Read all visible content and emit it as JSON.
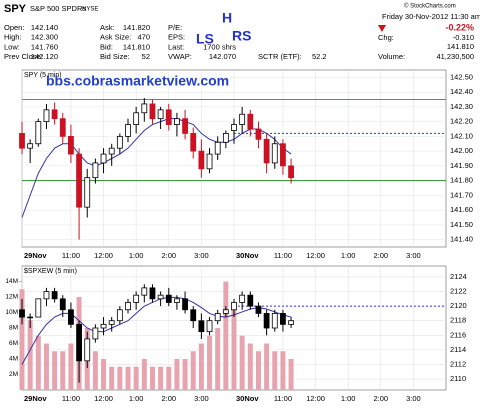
{
  "header": {
    "symbol": "SPY",
    "name": "S&P 500 SPDRs",
    "exchange": "NYSE",
    "source": "© StockCharts.com",
    "date": "Friday  30-Nov-2012  11:30 am",
    "col1": [
      [
        "Open:",
        "142.140"
      ],
      [
        "High:",
        "142.300"
      ],
      [
        "Low:",
        "141.760"
      ],
      [
        "Prev Close:",
        "142.120"
      ]
    ],
    "col2": [
      [
        "Ask:",
        "141.820"
      ],
      [
        "Ask Size:",
        "470"
      ],
      [
        "Bid:",
        "141.810"
      ],
      [
        "Bid Size:",
        "52"
      ]
    ],
    "col3": [
      [
        "P/E:",
        ""
      ],
      [
        "EPS:",
        ""
      ],
      [
        "Last:",
        "1700 shrs"
      ],
      [
        "VWAP:",
        "142.070"
      ]
    ],
    "sctr": [
      "SCTR (ETF):",
      "52.2"
    ],
    "change_pct": "-0.22%",
    "chg": [
      "Chg:",
      "-0.310"
    ],
    "last": "141.810",
    "volume": [
      "Volume:",
      "41,230,500"
    ],
    "annotations": [
      "LS",
      "H",
      "RS"
    ],
    "watermark": "bbs.cobrasmarketview.com"
  },
  "chart_data": [
    {
      "type": "candlestick",
      "title": "SPY (5 min)",
      "up_color": "#000000",
      "down_color": "#cc1122",
      "grid": true,
      "xlim": [
        0,
        156
      ],
      "xticks": [
        {
          "value": 0,
          "label": "29Nov"
        },
        {
          "value": 18,
          "label": "11:00"
        },
        {
          "value": 30,
          "label": "12:00"
        },
        {
          "value": 42,
          "label": "1:00"
        },
        {
          "value": 54,
          "label": "2:00"
        },
        {
          "value": 66,
          "label": "3:00"
        },
        {
          "value": 78,
          "label": "30Nov"
        },
        {
          "value": 96,
          "label": "11:00"
        },
        {
          "value": 108,
          "label": "12:00"
        },
        {
          "value": 120,
          "label": "1:00"
        },
        {
          "value": 132,
          "label": "2:00"
        },
        {
          "value": 144,
          "label": "3:00"
        }
      ],
      "ylim": [
        141.35,
        142.55
      ],
      "yticks": [
        {
          "value": 141.4,
          "label": "141.40"
        },
        {
          "value": 141.5,
          "label": "141.50"
        },
        {
          "value": 141.6,
          "label": "141.60"
        },
        {
          "value": 141.7,
          "label": "141.70"
        },
        {
          "value": 141.8,
          "label": "141.80"
        },
        {
          "value": 141.9,
          "label": "141.90"
        },
        {
          "value": 142.0,
          "label": "142.00"
        },
        {
          "value": 142.1,
          "label": "142.10"
        },
        {
          "value": 142.2,
          "label": "142.20"
        },
        {
          "value": 142.3,
          "label": "142.30"
        },
        {
          "value": 142.4,
          "label": "142.40"
        },
        {
          "value": 142.5,
          "label": "142.50"
        }
      ],
      "x": [
        0,
        3,
        6,
        9,
        12,
        15,
        18,
        21,
        24,
        27,
        30,
        33,
        36,
        39,
        42,
        45,
        48,
        51,
        54,
        57,
        60,
        63,
        66,
        69,
        72,
        75,
        78,
        81,
        84,
        87,
        90,
        93,
        96,
        99
      ],
      "ohlc": [
        [
          142.12,
          142.2,
          141.98,
          142.02
        ],
        [
          142.02,
          142.08,
          141.92,
          142.05
        ],
        [
          142.05,
          142.22,
          142.03,
          142.2
        ],
        [
          142.2,
          142.32,
          142.15,
          142.28
        ],
        [
          142.28,
          142.33,
          142.18,
          142.22
        ],
        [
          142.22,
          142.26,
          142.05,
          142.1
        ],
        [
          142.1,
          142.18,
          141.92,
          141.98
        ],
        [
          141.98,
          142.02,
          141.4,
          141.62
        ],
        [
          141.62,
          141.88,
          141.55,
          141.82
        ],
        [
          141.82,
          141.95,
          141.78,
          141.92
        ],
        [
          141.92,
          142.02,
          141.85,
          141.98
        ],
        [
          141.98,
          142.05,
          141.9,
          142.02
        ],
        [
          142.02,
          142.12,
          141.98,
          142.1
        ],
        [
          142.1,
          142.22,
          142.06,
          142.18
        ],
        [
          142.18,
          142.3,
          142.12,
          142.26
        ],
        [
          142.26,
          142.36,
          142.2,
          142.32
        ],
        [
          142.32,
          142.35,
          142.18,
          142.22
        ],
        [
          142.22,
          142.3,
          142.15,
          142.28
        ],
        [
          142.28,
          142.32,
          142.14,
          142.18
        ],
        [
          142.18,
          142.26,
          142.1,
          142.22
        ],
        [
          142.22,
          142.28,
          142.08,
          142.12
        ],
        [
          142.12,
          142.16,
          141.95,
          142.0
        ],
        [
          142.0,
          142.08,
          141.82,
          141.88
        ],
        [
          141.88,
          142.02,
          141.85,
          141.98
        ],
        [
          141.98,
          142.1,
          141.94,
          142.06
        ],
        [
          142.06,
          142.14,
          142.02,
          142.12
        ],
        [
          142.14,
          142.22,
          142.05,
          142.18
        ],
        [
          142.18,
          142.3,
          142.12,
          142.25
        ],
        [
          142.25,
          142.28,
          142.1,
          142.15
        ],
        [
          142.15,
          142.2,
          142.02,
          142.08
        ],
        [
          142.08,
          142.12,
          141.85,
          141.92
        ],
        [
          141.92,
          142.1,
          141.88,
          142.05
        ],
        [
          142.05,
          142.08,
          141.84,
          141.9
        ],
        [
          141.9,
          141.95,
          141.78,
          141.82
        ]
      ],
      "ma": {
        "color": "#3333aa",
        "values": [
          141.55,
          141.7,
          141.85,
          141.95,
          142.02,
          142.05,
          142.05,
          141.98,
          141.92,
          141.9,
          141.92,
          141.95,
          141.98,
          142.02,
          142.08,
          142.14,
          142.18,
          142.2,
          142.22,
          142.22,
          142.2,
          142.18,
          142.12,
          142.08,
          142.06,
          142.06,
          142.08,
          142.12,
          142.15,
          142.15,
          142.12,
          142.08,
          142.02,
          141.98
        ]
      },
      "levels": [
        {
          "value": 142.35,
          "color": "#e0504a",
          "from": 0,
          "dashed": false
        },
        {
          "value": 141.8,
          "color": "#2a8a2a",
          "from": 0,
          "dashed": false
        },
        {
          "value": 142.12,
          "color": "#3333cc",
          "from": 78,
          "dashed": true
        }
      ]
    },
    {
      "type": "candlestick",
      "title": "$SPXEW (5 min)",
      "up_color": "#000000",
      "down_color": "#000000",
      "grid": true,
      "xlim": [
        0,
        156
      ],
      "xticks": [
        {
          "value": 0,
          "label": "29Nov"
        },
        {
          "value": 18,
          "label": "11:00"
        },
        {
          "value": 30,
          "label": "12:00"
        },
        {
          "value": 42,
          "label": "1:00"
        },
        {
          "value": 54,
          "label": "2:00"
        },
        {
          "value": 66,
          "label": "3:00"
        },
        {
          "value": 78,
          "label": "30Nov"
        },
        {
          "value": 96,
          "label": "11:00"
        },
        {
          "value": 108,
          "label": "12:00"
        },
        {
          "value": 120,
          "label": "1:00"
        },
        {
          "value": 132,
          "label": "2:00"
        },
        {
          "value": 144,
          "label": "3:00"
        }
      ],
      "ylim": [
        2108.5,
        2125.5
      ],
      "yticks": [
        2110,
        2112,
        2114,
        2116,
        2118,
        2120,
        2122,
        2124
      ],
      "x": [
        0,
        3,
        6,
        9,
        12,
        15,
        18,
        21,
        24,
        27,
        30,
        33,
        36,
        39,
        42,
        45,
        48,
        51,
        54,
        57,
        60,
        63,
        66,
        69,
        72,
        75,
        78,
        81,
        84,
        87,
        90,
        93,
        96,
        99
      ],
      "ohlc": [
        [
          2119.5,
          2121,
          2117.5,
          2118.5
        ],
        [
          2118.5,
          2119,
          2117,
          2118.5
        ],
        [
          2118.5,
          2121,
          2118.5,
          2121
        ],
        [
          2121,
          2122.5,
          2120,
          2122
        ],
        [
          2122,
          2122.5,
          2120.5,
          2121
        ],
        [
          2121,
          2121.5,
          2118.5,
          2119.5
        ],
        [
          2119.5,
          2120.5,
          2117,
          2117.5
        ],
        [
          2117.5,
          2118,
          2109.5,
          2112.5
        ],
        [
          2112.5,
          2116.5,
          2111.5,
          2115.5
        ],
        [
          2115.5,
          2117.5,
          2115,
          2117
        ],
        [
          2117,
          2118.5,
          2116,
          2117.5
        ],
        [
          2117.5,
          2118.5,
          2116.5,
          2118
        ],
        [
          2118,
          2120,
          2117.5,
          2119.5
        ],
        [
          2119.5,
          2121,
          2119,
          2120.5
        ],
        [
          2120.5,
          2122,
          2119.5,
          2121.5
        ],
        [
          2121.5,
          2123,
          2120.5,
          2122.5
        ],
        [
          2122.5,
          2123,
          2120.5,
          2121
        ],
        [
          2121,
          2122,
          2120,
          2121.5
        ],
        [
          2121.5,
          2122.5,
          2120,
          2120.5
        ],
        [
          2120.5,
          2121.5,
          2119.5,
          2121
        ],
        [
          2121,
          2122,
          2119,
          2119.5
        ],
        [
          2119.5,
          2120,
          2117,
          2118
        ],
        [
          2118,
          2119,
          2115.5,
          2116.5
        ],
        [
          2116.5,
          2118.5,
          2116,
          2118
        ],
        [
          2118,
          2119.5,
          2117.5,
          2119
        ],
        [
          2119,
          2120,
          2118.5,
          2119.5
        ],
        [
          2119.5,
          2121,
          2118.5,
          2120.5
        ],
        [
          2120.5,
          2122,
          2119.5,
          2121.5
        ],
        [
          2121.5,
          2122,
          2119.5,
          2120
        ],
        [
          2120,
          2120.5,
          2118.5,
          2119
        ],
        [
          2119,
          2119.5,
          2116,
          2117
        ],
        [
          2117,
          2119.5,
          2116.5,
          2119
        ],
        [
          2119,
          2119.5,
          2116.5,
          2117.5
        ],
        [
          2117.5,
          2118.5,
          2117,
          2118
        ]
      ],
      "ma": {
        "color": "#3333aa",
        "values": [
          2112,
          2114,
          2116,
          2117.5,
          2118.5,
          2119,
          2119,
          2118,
          2117,
          2116.5,
          2116.5,
          2117,
          2117.5,
          2118,
          2119,
          2120,
          2120.5,
          2121,
          2121.2,
          2121.2,
          2121,
          2120.5,
          2119.8,
          2119,
          2118.6,
          2118.5,
          2118.8,
          2119.2,
          2119.6,
          2119.8,
          2119.6,
          2119.2,
          2118.8,
          2118.5
        ]
      },
      "levels": [
        {
          "value": 2120,
          "color": "#3333cc",
          "from": 78,
          "dashed": true
        }
      ],
      "volume": {
        "color": "#e8a4ae",
        "ylim": [
          0,
          16
        ],
        "yticks": [
          {
            "value": 2,
            "label": "2M"
          },
          {
            "value": 4,
            "label": "4M"
          },
          {
            "value": 6,
            "label": "6M"
          },
          {
            "value": 8,
            "label": "8M"
          },
          {
            "value": 10,
            "label": "10M"
          },
          {
            "value": 12,
            "label": "12M"
          },
          {
            "value": 14,
            "label": "14M"
          }
        ],
        "values": [
          13,
          9,
          7,
          6,
          5,
          5,
          6,
          12,
          8,
          5,
          4,
          3,
          3,
          3,
          3,
          4,
          3,
          3,
          3,
          4,
          4,
          5,
          6,
          7,
          8,
          14,
          11,
          7,
          6,
          5,
          6,
          5,
          5,
          4
        ]
      }
    }
  ]
}
